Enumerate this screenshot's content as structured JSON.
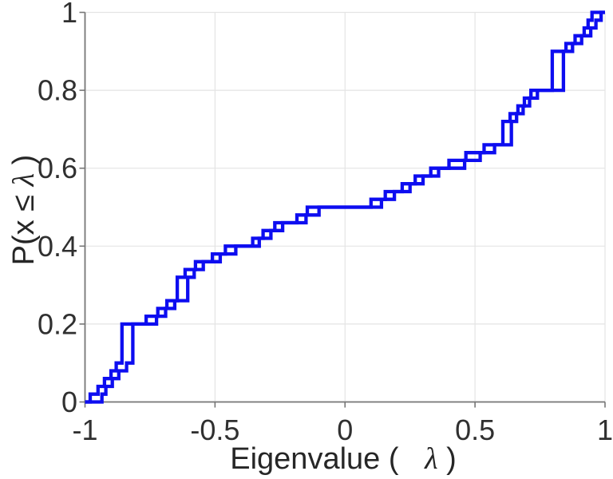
{
  "chart_data": {
    "type": "line",
    "subtype": "step-ecdf",
    "title": "",
    "xlabel": {
      "prefix": "Eigenvalue (",
      "symbol": "λ",
      "suffix": ")"
    },
    "ylabel": {
      "prefix": "P(x ≤ ",
      "symbol": "λ",
      "suffix": ")"
    },
    "xlim": [
      -1,
      1
    ],
    "ylim": [
      0,
      1
    ],
    "grid": true,
    "legend": "none",
    "x_ticks": {
      "values": [
        -1,
        -0.5,
        0,
        0.5,
        1
      ],
      "labels": [
        "-1",
        "-0.5",
        "0",
        "0.5",
        "1"
      ]
    },
    "y_ticks": {
      "values": [
        0,
        0.2,
        0.4,
        0.6,
        0.8,
        1
      ],
      "labels": [
        "0",
        "0.2",
        "0.4",
        "0.6",
        "0.8",
        "1"
      ]
    },
    "colors": {
      "line": "#0d0df0",
      "grid": "#e4e4e4",
      "axis": "#767676",
      "tick_text": "#303030",
      "background": "#ffffff"
    },
    "series": [
      {
        "name": "ecdf-curve-1",
        "step_height": 0.02,
        "start_probability": 0,
        "eigenvalues": [
          -0.98,
          -0.95,
          -0.925,
          -0.9,
          -0.88,
          -0.858,
          -0.858,
          -0.858,
          -0.858,
          -0.858,
          -0.765,
          -0.72,
          -0.685,
          -0.645,
          -0.645,
          -0.645,
          -0.615,
          -0.575,
          -0.51,
          -0.46,
          -0.355,
          -0.315,
          -0.27,
          -0.185,
          -0.145,
          0.1,
          0.155,
          0.22,
          0.27,
          0.33,
          0.4,
          0.465,
          0.535,
          0.607,
          0.607,
          0.607,
          0.635,
          0.665,
          0.69,
          0.715,
          0.797,
          0.797,
          0.797,
          0.797,
          0.797,
          0.85,
          0.885,
          0.92,
          0.935,
          0.95
        ]
      },
      {
        "name": "ecdf-curve-2",
        "step_height": 0.02,
        "start_probability": 0,
        "eigenvalues": [
          -0.935,
          -0.92,
          -0.895,
          -0.87,
          -0.84,
          -0.816,
          -0.816,
          -0.816,
          -0.816,
          -0.816,
          -0.725,
          -0.69,
          -0.655,
          -0.605,
          -0.605,
          -0.605,
          -0.58,
          -0.545,
          -0.48,
          -0.42,
          -0.33,
          -0.285,
          -0.24,
          -0.15,
          -0.1,
          0.14,
          0.19,
          0.25,
          0.3,
          0.36,
          0.46,
          0.52,
          0.575,
          0.64,
          0.64,
          0.64,
          0.66,
          0.685,
          0.71,
          0.74,
          0.84,
          0.84,
          0.84,
          0.84,
          0.84,
          0.875,
          0.91,
          0.945,
          0.965,
          0.985
        ]
      }
    ]
  }
}
